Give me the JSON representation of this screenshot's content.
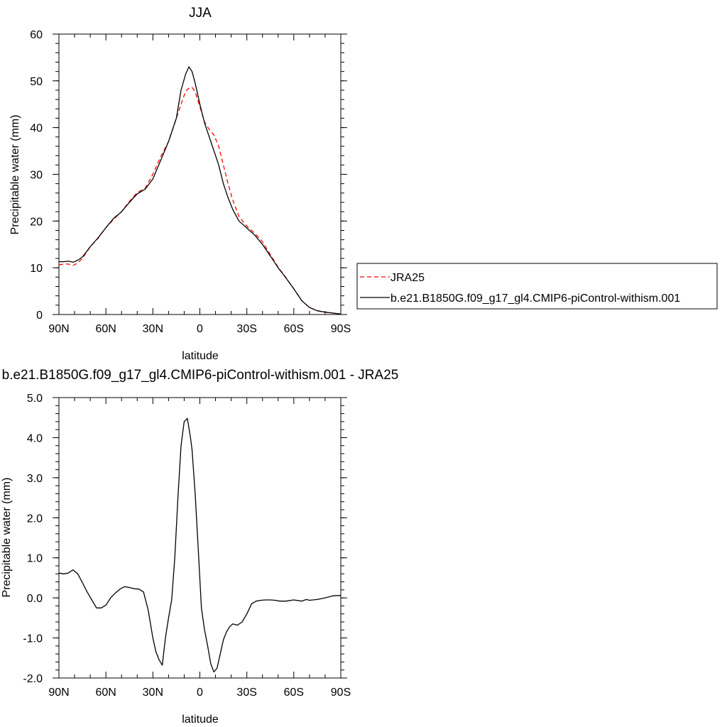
{
  "chart_data": [
    {
      "type": "line",
      "title": "JJA",
      "xlabel": "latitude",
      "ylabel": "Precipitable water (mm)",
      "xlim": [
        90,
        -90
      ],
      "ylim": [
        0,
        60
      ],
      "x_ticks": [
        {
          "v": 90,
          "label": "90N"
        },
        {
          "v": 60,
          "label": "60N"
        },
        {
          "v": 30,
          "label": "30N"
        },
        {
          "v": 0,
          "label": "0"
        },
        {
          "v": -30,
          "label": "30S"
        },
        {
          "v": -60,
          "label": "60S"
        },
        {
          "v": -90,
          "label": "90S"
        }
      ],
      "y_ticks": [
        {
          "v": 0,
          "label": "0"
        },
        {
          "v": 10,
          "label": "10"
        },
        {
          "v": 20,
          "label": "20"
        },
        {
          "v": 30,
          "label": "30"
        },
        {
          "v": 40,
          "label": "40"
        },
        {
          "v": 50,
          "label": "50"
        },
        {
          "v": 60,
          "label": "60"
        }
      ],
      "grid": false,
      "legend_position": "right",
      "series": [
        {
          "name": "JRA25",
          "color": "#ff0000",
          "dash": "dashed",
          "x": [
            90,
            87,
            84,
            81,
            78,
            75,
            70,
            65,
            60,
            55,
            50,
            45,
            40,
            35,
            30,
            25,
            20,
            15,
            12,
            9,
            7,
            5,
            3,
            0,
            -3,
            -6,
            -9,
            -12,
            -15,
            -18,
            -21,
            -25,
            -30,
            -35,
            -40,
            -45,
            -50,
            -55,
            -60,
            -65,
            -70,
            -75,
            -80,
            -85,
            -90
          ],
          "y": [
            10.6,
            10.8,
            10.8,
            10.5,
            11.0,
            12.0,
            14.5,
            16.3,
            18.6,
            20.4,
            22.0,
            24.2,
            26.1,
            27.0,
            30.0,
            33.8,
            37.0,
            42.0,
            45.0,
            47.8,
            48.4,
            48.6,
            47.6,
            44.5,
            41.2,
            39.6,
            38.4,
            36.0,
            32.0,
            28.0,
            24.5,
            21.0,
            18.9,
            17.4,
            15.6,
            12.8,
            10.1,
            7.9,
            5.5,
            3.0,
            1.5,
            0.8,
            0.5,
            0.3,
            0.1
          ]
        },
        {
          "name": "b.e21.B1850G.f09_g17_gl4.CMIP6-piControl-withism.001",
          "color": "#000000",
          "dash": "solid",
          "x": [
            90,
            87,
            84,
            81,
            78,
            75,
            70,
            65,
            60,
            55,
            50,
            45,
            40,
            35,
            30,
            25,
            20,
            15,
            12,
            9,
            7,
            5,
            3,
            0,
            -3,
            -6,
            -9,
            -12,
            -15,
            -18,
            -21,
            -25,
            -30,
            -35,
            -40,
            -45,
            -50,
            -55,
            -60,
            -65,
            -70,
            -75,
            -80,
            -85,
            -90
          ],
          "y": [
            11.3,
            11.3,
            11.4,
            11.2,
            11.6,
            12.3,
            14.5,
            16.4,
            18.6,
            20.6,
            22.0,
            24.0,
            25.8,
            26.8,
            29.0,
            33.0,
            37.0,
            42.0,
            48.0,
            51.5,
            53.0,
            52.0,
            49.5,
            45.0,
            41.0,
            38.0,
            35.0,
            32.0,
            28.0,
            25.0,
            22.5,
            20.0,
            18.5,
            17.0,
            15.0,
            12.5,
            10.0,
            7.8,
            5.5,
            3.0,
            1.5,
            0.8,
            0.5,
            0.3,
            0.1
          ]
        }
      ]
    },
    {
      "type": "line",
      "title": "b.e21.B1850G.f09_g17_gl4.CMIP6-piControl-withism.001 - JRA25",
      "xlabel": "latitude",
      "ylabel": "Precipitable water (mm)",
      "xlim": [
        90,
        -90
      ],
      "ylim": [
        -2.0,
        5.0
      ],
      "x_ticks": [
        {
          "v": 90,
          "label": "90N"
        },
        {
          "v": 60,
          "label": "60N"
        },
        {
          "v": 30,
          "label": "30N"
        },
        {
          "v": 0,
          "label": "0"
        },
        {
          "v": -30,
          "label": "30S"
        },
        {
          "v": -60,
          "label": "60S"
        },
        {
          "v": -90,
          "label": "90S"
        }
      ],
      "y_ticks": [
        {
          "v": -2.0,
          "label": "-2.0"
        },
        {
          "v": -1.0,
          "label": "-1.0"
        },
        {
          "v": 0.0,
          "label": "0.0"
        },
        {
          "v": 1.0,
          "label": "1.0"
        },
        {
          "v": 2.0,
          "label": "2.0"
        },
        {
          "v": 3.0,
          "label": "3.0"
        },
        {
          "v": 4.0,
          "label": "4.0"
        },
        {
          "v": 5.0,
          "label": "5.0"
        }
      ],
      "grid": false,
      "series": [
        {
          "color": "#000000",
          "dash": "solid",
          "x": [
            90,
            87,
            84,
            81,
            78,
            75,
            72,
            69,
            66,
            63,
            60,
            57,
            54,
            51,
            48,
            45,
            42,
            39,
            36,
            33,
            30,
            28,
            26,
            24,
            22,
            20,
            18,
            16,
            14,
            12,
            10,
            8,
            6,
            5,
            3,
            1,
            -1,
            -3,
            -5,
            -7,
            -9,
            -11,
            -13,
            -15,
            -17,
            -19,
            -21,
            -24,
            -27,
            -30,
            -33,
            -36,
            -39,
            -42,
            -45,
            -48,
            -51,
            -55,
            -60,
            -65,
            -68,
            -70,
            -75,
            -80,
            -85,
            -88,
            -90
          ],
          "y": [
            0.62,
            0.6,
            0.62,
            0.7,
            0.6,
            0.38,
            0.15,
            -0.05,
            -0.25,
            -0.25,
            -0.18,
            0.0,
            0.12,
            0.22,
            0.28,
            0.26,
            0.23,
            0.22,
            0.15,
            -0.3,
            -1.0,
            -1.35,
            -1.55,
            -1.68,
            -1.0,
            -0.5,
            -0.05,
            1.0,
            2.5,
            3.8,
            4.4,
            4.48,
            4.0,
            3.7,
            2.6,
            1.2,
            -0.25,
            -0.8,
            -1.2,
            -1.65,
            -1.85,
            -1.75,
            -1.4,
            -1.05,
            -0.85,
            -0.72,
            -0.65,
            -0.68,
            -0.6,
            -0.4,
            -0.15,
            -0.08,
            -0.06,
            -0.05,
            -0.05,
            -0.06,
            -0.08,
            -0.08,
            -0.05,
            -0.08,
            -0.04,
            -0.06,
            -0.04,
            0.0,
            0.05,
            0.06,
            0.06
          ]
        }
      ]
    }
  ]
}
